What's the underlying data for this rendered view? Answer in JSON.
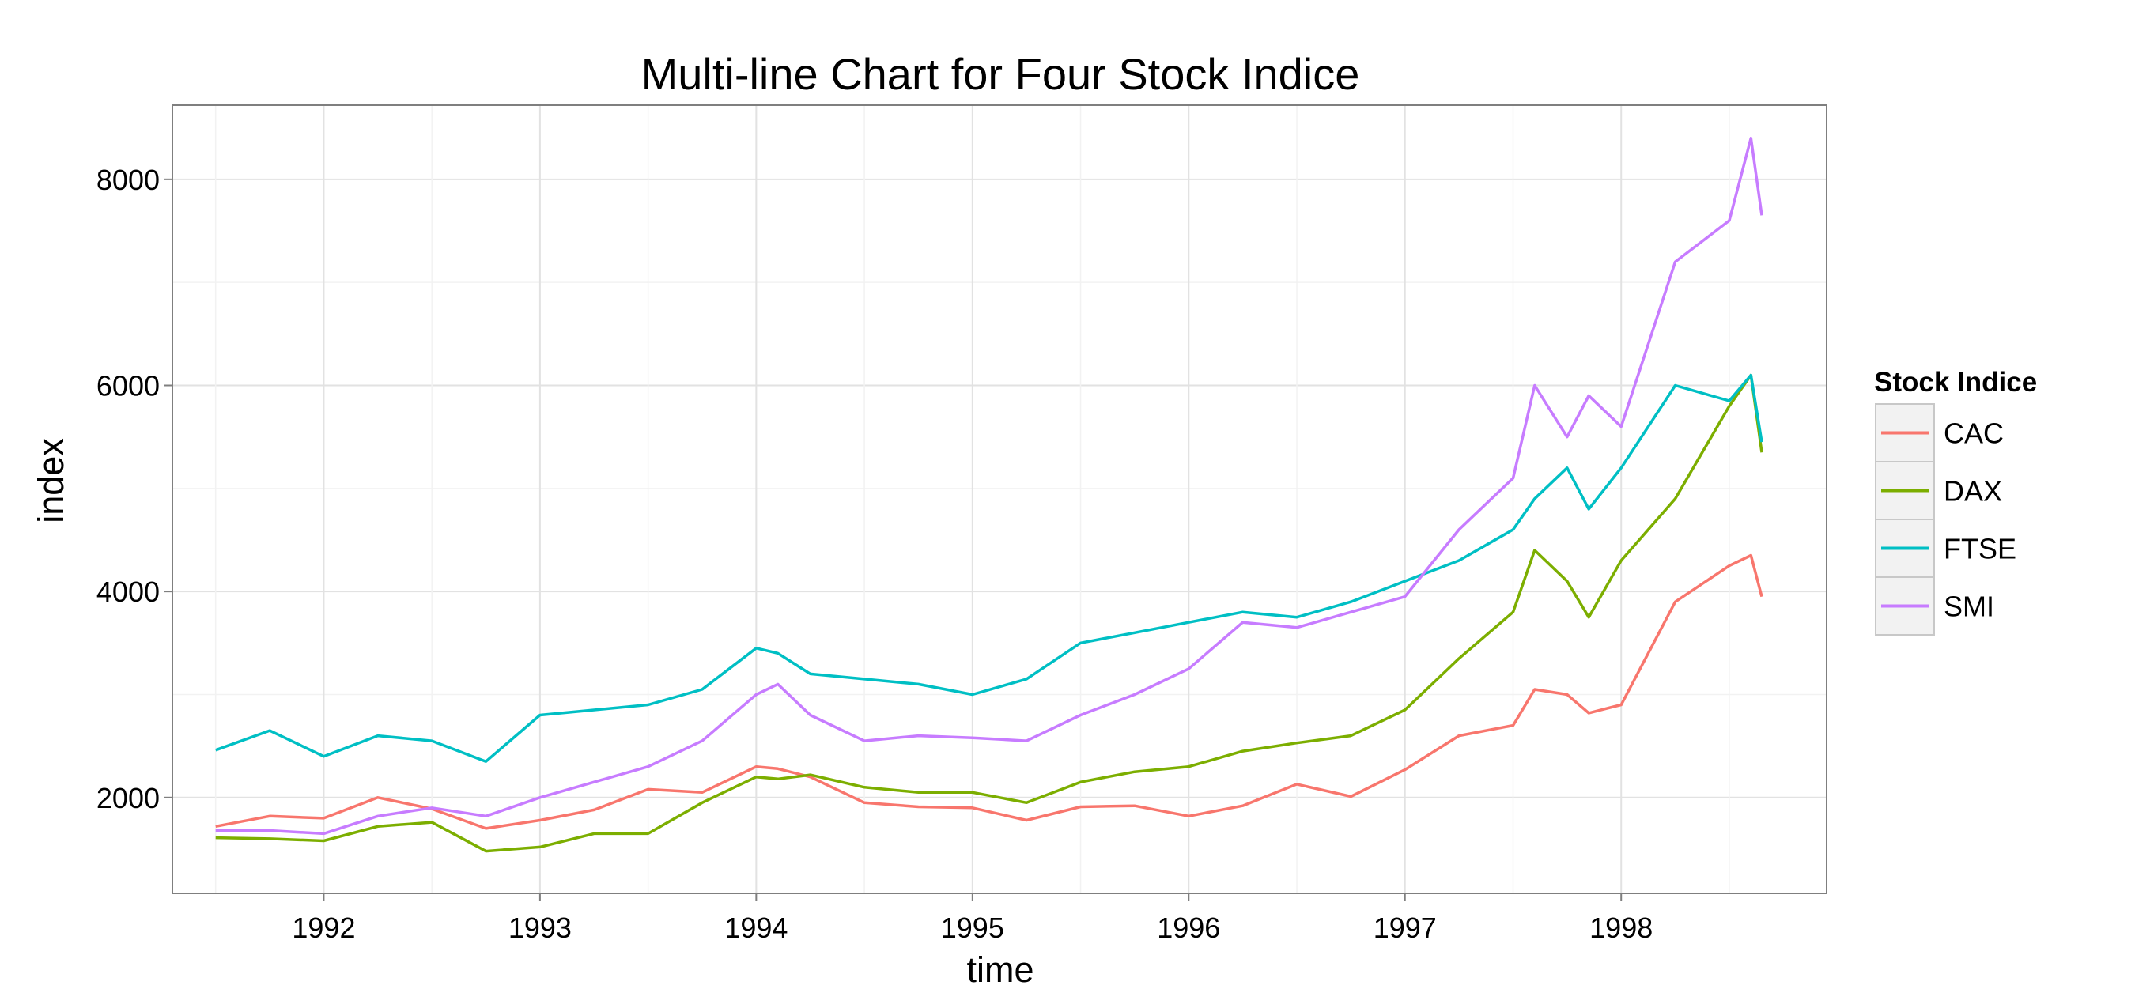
{
  "chart_data": {
    "type": "line",
    "title": "Multi-line Chart for Four Stock Indice",
    "xlabel": "time",
    "ylabel": "index",
    "xlim": [
      1991.3,
      1998.95
    ],
    "ylim": [
      1070,
      8720
    ],
    "x_ticks": [
      1992,
      1993,
      1994,
      1995,
      1996,
      1997,
      1998
    ],
    "x_tick_labels": [
      "1992",
      "1993",
      "1994",
      "1995",
      "1996",
      "1997",
      "1998"
    ],
    "y_ticks": [
      2000,
      4000,
      6000,
      8000
    ],
    "y_tick_labels": [
      "2000",
      "4000",
      "6000",
      "8000"
    ],
    "grid": true,
    "legend_position": "right",
    "legend_title": "Stock Indice",
    "x": [
      1991.5,
      1991.75,
      1992.0,
      1992.25,
      1992.5,
      1992.75,
      1993.0,
      1993.25,
      1993.5,
      1993.75,
      1994.0,
      1994.1,
      1994.25,
      1994.5,
      1994.75,
      1995.0,
      1995.25,
      1995.5,
      1995.75,
      1996.0,
      1996.25,
      1996.5,
      1996.75,
      1997.0,
      1997.25,
      1997.5,
      1997.6,
      1997.75,
      1997.85,
      1998.0,
      1998.25,
      1998.5,
      1998.6,
      1998.65
    ],
    "series": [
      {
        "name": "CAC",
        "color": "#F8766D",
        "values": [
          1720,
          1820,
          1800,
          2000,
          1890,
          1700,
          1780,
          1880,
          2080,
          2050,
          2300,
          2280,
          2200,
          1950,
          1910,
          1900,
          1780,
          1910,
          1920,
          1820,
          1920,
          2130,
          2010,
          2270,
          2600,
          2700,
          3050,
          3000,
          2820,
          2900,
          3900,
          4250,
          4350,
          3950
        ]
      },
      {
        "name": "DAX",
        "color": "#7CAE00",
        "values": [
          1610,
          1600,
          1580,
          1720,
          1760,
          1480,
          1520,
          1650,
          1650,
          1950,
          2200,
          2180,
          2220,
          2100,
          2050,
          2050,
          1950,
          2150,
          2250,
          2300,
          2450,
          2530,
          2600,
          2850,
          3350,
          3800,
          4400,
          4100,
          3750,
          4300,
          4900,
          5800,
          6100,
          5350
        ]
      },
      {
        "name": "FTSE",
        "color": "#00BFC4",
        "values": [
          2460,
          2650,
          2400,
          2600,
          2550,
          2350,
          2800,
          2850,
          2900,
          3050,
          3450,
          3400,
          3200,
          3150,
          3100,
          3000,
          3150,
          3500,
          3600,
          3700,
          3800,
          3750,
          3900,
          4100,
          4300,
          4600,
          4900,
          5200,
          4800,
          5200,
          6000,
          5850,
          6100,
          5450
        ]
      },
      {
        "name": "SMI",
        "color": "#C77CFF",
        "values": [
          1680,
          1680,
          1650,
          1820,
          1900,
          1820,
          2000,
          2150,
          2300,
          2550,
          3000,
          3100,
          2800,
          2550,
          2600,
          2580,
          2550,
          2800,
          3000,
          3250,
          3700,
          3650,
          3800,
          3950,
          4600,
          5100,
          6000,
          5500,
          5900,
          5600,
          7200,
          7600,
          8400,
          7650
        ]
      }
    ]
  }
}
